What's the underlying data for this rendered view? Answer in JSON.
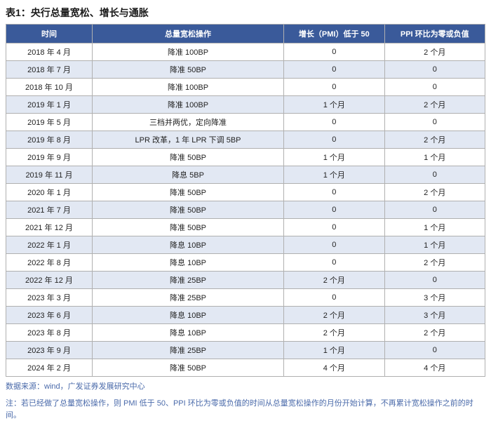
{
  "title": "表1：央行总量宽松、增长与通胀",
  "header_bg": "#3a5a9a",
  "row_even_bg": "#ffffff",
  "row_odd_bg": "#e2e8f3",
  "border_color": "#b0b0b0",
  "footnote_color": "#4a6aaa",
  "col_widths": [
    "18%",
    "40%",
    "21%",
    "21%"
  ],
  "columns": [
    "时间",
    "总量宽松操作",
    "增长（PMI）低于 50",
    "PPI 环比为零或负值"
  ],
  "rows": [
    [
      "2018 年 4 月",
      "降准 100BP",
      "0",
      "2 个月"
    ],
    [
      "2018 年 7 月",
      "降准 50BP",
      "0",
      "0"
    ],
    [
      "2018 年 10 月",
      "降准 100BP",
      "0",
      "0"
    ],
    [
      "2019 年 1 月",
      "降准 100BP",
      "1 个月",
      "2 个月"
    ],
    [
      "2019 年 5 月",
      "三档并两优，定向降准",
      "0",
      "0"
    ],
    [
      "2019 年 8 月",
      "LPR 改革，1 年 LPR 下调 5BP",
      "0",
      "2 个月"
    ],
    [
      "2019 年 9 月",
      "降准 50BP",
      "1 个月",
      "1 个月"
    ],
    [
      "2019 年 11 月",
      "降息 5BP",
      "1 个月",
      "0"
    ],
    [
      "2020 年 1 月",
      "降准 50BP",
      "0",
      "2 个月"
    ],
    [
      "2021 年 7 月",
      "降准 50BP",
      "0",
      "0"
    ],
    [
      "2021 年 12 月",
      "降准 50BP",
      "0",
      "1 个月"
    ],
    [
      "2022 年 1 月",
      "降息 10BP",
      "0",
      "1 个月"
    ],
    [
      "2022 年 8 月",
      "降息 10BP",
      "0",
      "2 个月"
    ],
    [
      "2022 年 12 月",
      "降准 25BP",
      "2 个月",
      "0"
    ],
    [
      "2023 年 3 月",
      "降准 25BP",
      "0",
      "3 个月"
    ],
    [
      "2023 年 6 月",
      "降息 10BP",
      "2 个月",
      "3 个月"
    ],
    [
      "2023 年 8 月",
      "降息 10BP",
      "2 个月",
      "2 个月"
    ],
    [
      "2023 年 9 月",
      "降准 25BP",
      "1 个月",
      "0"
    ],
    [
      "2024 年 2 月",
      "降准 50BP",
      "4 个月",
      "4 个月"
    ]
  ],
  "source_label": "数据来源：wind，广发证券发展研究中心",
  "note_label": "注：若已经做了总量宽松操作，则 PMI 低于 50、PPI 环比为零或负值的时间从总量宽松操作的月份开始计算，不再累计宽松操作之前的时间。"
}
